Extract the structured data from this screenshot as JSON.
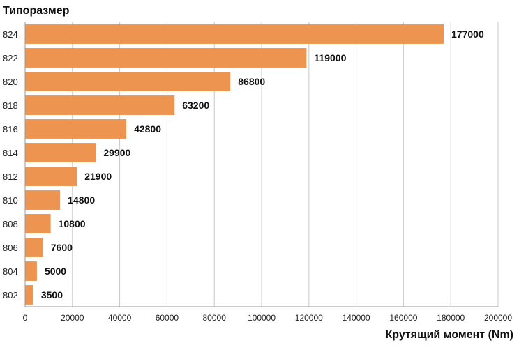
{
  "chart_data": {
    "type": "bar",
    "orientation": "horizontal",
    "ylabel": "Типоразмер",
    "xlabel": "Крутящий момент (Nm)",
    "categories": [
      "824",
      "822",
      "820",
      "818",
      "816",
      "814",
      "812",
      "810",
      "808",
      "806",
      "804",
      "802"
    ],
    "values": [
      177000,
      119000,
      86800,
      63200,
      42800,
      29900,
      21900,
      14800,
      10800,
      7600,
      5000,
      3500
    ],
    "value_labels": [
      "177000",
      "119000",
      "86800",
      "63200",
      "42800",
      "29900",
      "21900",
      "14800",
      "10800",
      "7600",
      "5000",
      "3500"
    ],
    "xlim": [
      0,
      200000
    ],
    "xticks": [
      0,
      20000,
      40000,
      60000,
      80000,
      100000,
      120000,
      140000,
      160000,
      180000,
      200000
    ],
    "xtick_labels": [
      "0",
      "20000",
      "40000",
      "60000",
      "80000",
      "100000",
      "120000",
      "140000",
      "160000",
      "180000",
      "200000"
    ],
    "grid": "vertical",
    "bar_color": "#ED9550",
    "grid_color": "#C8C8C8"
  }
}
